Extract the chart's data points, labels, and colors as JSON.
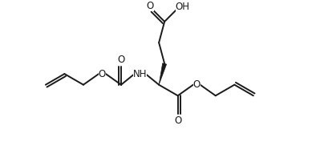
{
  "bg_color": "#ffffff",
  "line_color": "#1a1a1a",
  "line_width": 1.4,
  "font_size": 8.5,
  "figsize": [
    3.89,
    1.97
  ],
  "dpi": 100,
  "xlim": [
    0,
    10
  ],
  "ylim": [
    0,
    5.2
  ]
}
